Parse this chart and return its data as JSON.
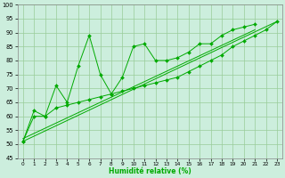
{
  "xlabel": "Humidité relative (%)",
  "bg_color": "#cceedd",
  "grid_color": "#99cc99",
  "line_color": "#00aa00",
  "xlim": [
    -0.5,
    23.5
  ],
  "ylim": [
    45,
    100
  ],
  "yticks": [
    45,
    50,
    55,
    60,
    65,
    70,
    75,
    80,
    85,
    90,
    95,
    100
  ],
  "xticks": [
    0,
    1,
    2,
    3,
    4,
    5,
    6,
    7,
    8,
    9,
    10,
    11,
    12,
    13,
    14,
    15,
    16,
    17,
    18,
    19,
    20,
    21,
    22,
    23
  ],
  "series1_x": [
    0,
    1,
    2,
    3,
    4,
    5,
    6,
    7,
    8,
    9,
    10,
    11,
    12,
    13,
    14,
    15,
    16,
    17,
    18,
    19,
    20,
    21
  ],
  "series1_y": [
    51,
    62,
    60,
    71,
    65,
    78,
    89,
    75,
    68,
    74,
    85,
    86,
    80,
    80,
    81,
    83,
    86,
    86,
    89,
    91,
    92,
    93
  ],
  "series2_x": [
    0,
    1,
    2,
    3,
    4,
    5,
    6,
    7,
    8,
    9,
    10,
    11,
    12,
    13,
    14,
    15,
    16,
    17,
    18,
    19,
    20,
    21,
    22,
    23
  ],
  "series2_y": [
    51,
    60,
    60,
    63,
    64,
    65,
    66,
    67,
    68,
    69,
    70,
    71,
    72,
    73,
    74,
    76,
    78,
    80,
    82,
    85,
    87,
    89,
    91,
    94
  ],
  "trend1": [
    51,
    94
  ],
  "trend2": [
    52,
    91
  ],
  "trend1_x": [
    0,
    23
  ],
  "trend2_x": [
    0,
    21
  ]
}
